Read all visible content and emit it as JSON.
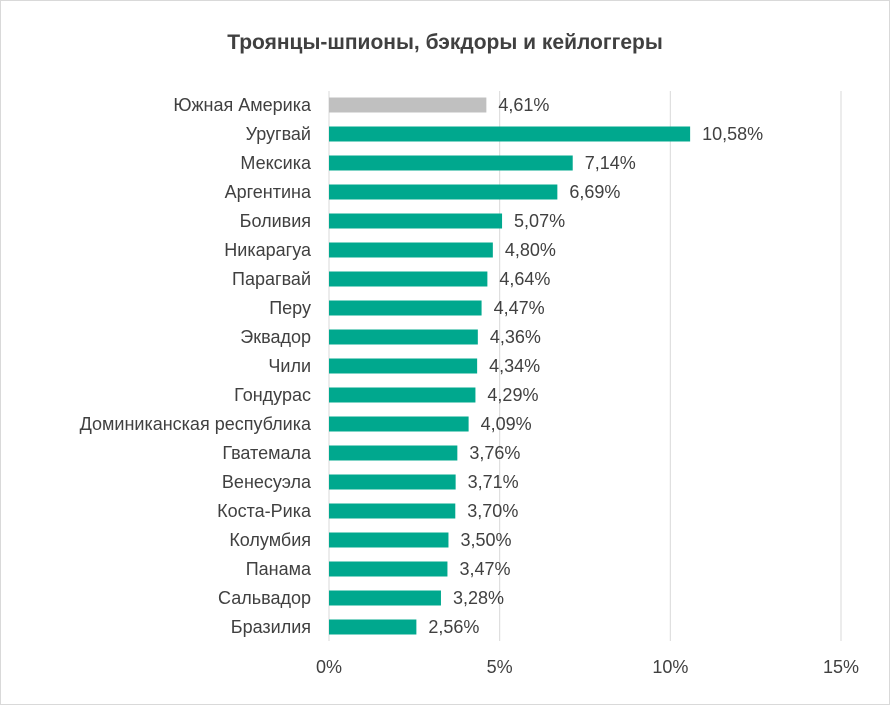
{
  "chart_data": {
    "type": "bar",
    "orientation": "horizontal",
    "title": "Троянцы-шпионы, бэкдоры и кейлоггеры",
    "categories": [
      "Южная Америка",
      "Уругвай",
      "Мексика",
      "Аргентина ",
      "Боливия",
      "Никарагуа",
      "Парагвай",
      "Перу",
      "Эквадор",
      "Чили",
      "Гондурас",
      "Доминиканская республика",
      "Гватемала",
      "Венесуэла",
      "Коста-Рика",
      "Колумбия",
      "Панама",
      "Сальвадор",
      "Бразилия"
    ],
    "values": [
      4.61,
      10.58,
      7.14,
      6.69,
      5.07,
      4.8,
      4.64,
      4.47,
      4.36,
      4.34,
      4.29,
      4.09,
      3.76,
      3.71,
      3.7,
      3.5,
      3.47,
      3.28,
      2.56
    ],
    "value_labels": [
      "4,61%",
      "10,58%",
      "7,14%",
      "6,69%",
      "5,07%",
      "4,80%",
      "4,64%",
      "4,47%",
      "4,36%",
      "4,34%",
      "4,29%",
      "4,09%",
      "3,76%",
      "3,71%",
      "3,70%",
      "3,50%",
      "3,47%",
      "3,28%",
      "2,56%"
    ],
    "highlight_index": 0,
    "xlim": [
      0,
      15
    ],
    "x_ticks": [
      0,
      5,
      10,
      15
    ],
    "x_tick_labels": [
      "0%",
      "5%",
      "10%",
      "15%"
    ],
    "grid": "vertical",
    "legend": "none",
    "colors": {
      "bar": "#00a88e",
      "highlight": "#c0c0c0",
      "grid": "#d9d9d9",
      "text": "#404040"
    }
  }
}
